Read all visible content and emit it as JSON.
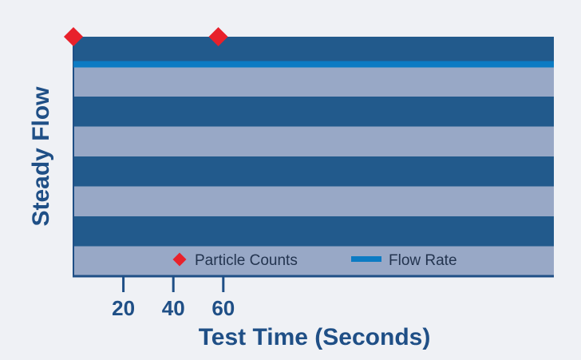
{
  "chart_data": {
    "type": "line",
    "xlabel": "Test Time (Seconds)",
    "ylabel": "Steady Flow",
    "xlim": [
      0,
      64
    ],
    "ylim": [
      0,
      1
    ],
    "xticks": [
      20,
      40,
      60
    ],
    "grid": "alternating horizontal bands",
    "legend": "bottom-center",
    "colors": {
      "band_dark": "#225a8c",
      "band_light": "#98a8c6",
      "axis": "#1f4f86",
      "particle_counts": "#e8212b",
      "flow_rate": "#0c7bc3"
    },
    "series": [
      {
        "name": "Particle Counts",
        "marker": "diamond",
        "x": [
          0,
          58
        ],
        "y": [
          1.0,
          1.0
        ]
      },
      {
        "name": "Flow Rate",
        "marker": "line",
        "x": [
          0,
          64
        ],
        "y": [
          0.885,
          0.885
        ]
      }
    ]
  }
}
